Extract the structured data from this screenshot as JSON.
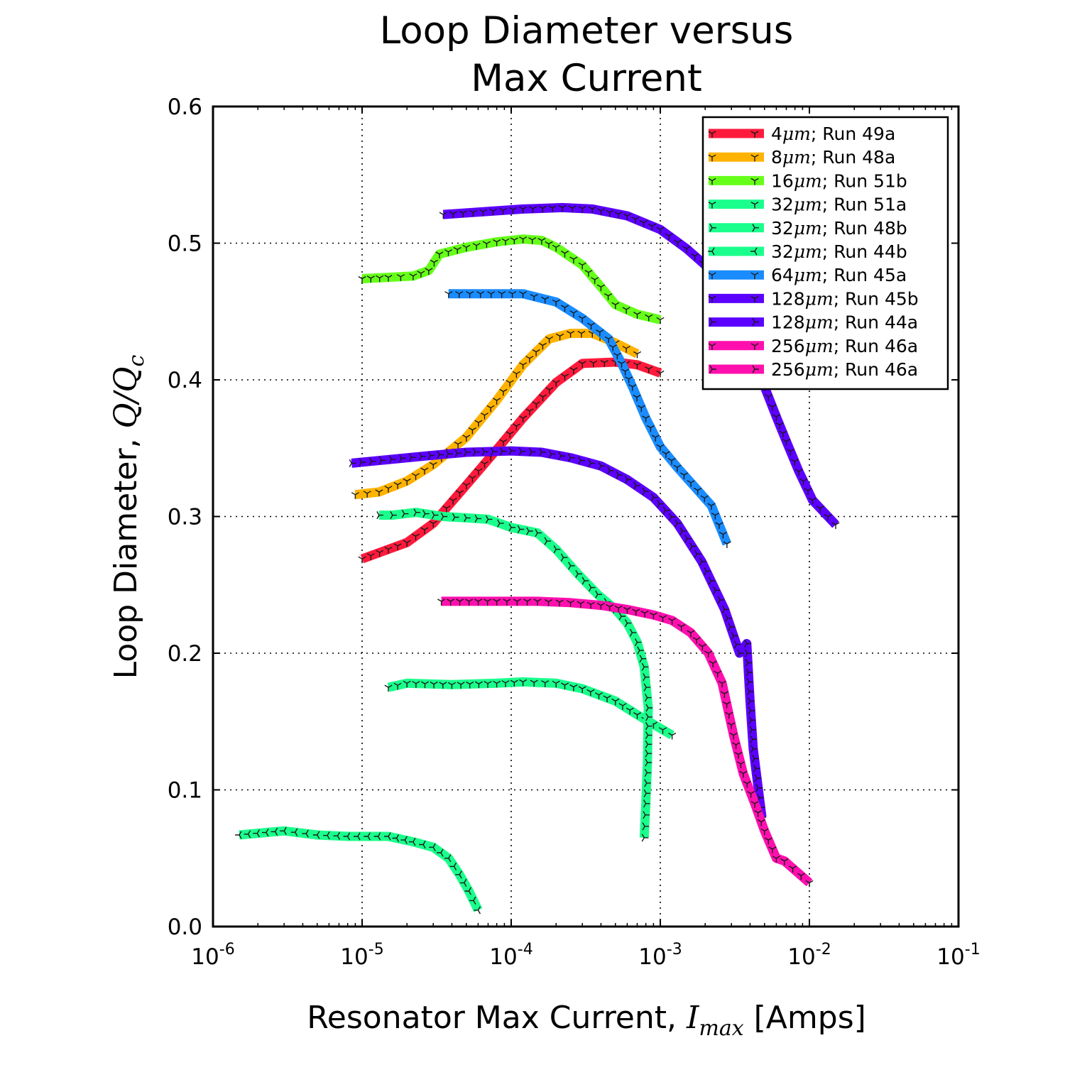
{
  "chart_data": {
    "type": "line",
    "title_lines": [
      "Loop Diameter versus",
      "Max Current"
    ],
    "xlabel": {
      "text": "Resonator Max Current, ",
      "math": "I",
      "sub": "max",
      "suffix": " [Amps]"
    },
    "ylabel": {
      "text": "Loop Diameter, ",
      "math": "Q/Q",
      "sub": "c"
    },
    "x_scale": "log",
    "xlim": [
      1e-06,
      0.1
    ],
    "ylim": [
      0.0,
      0.6
    ],
    "grid": true,
    "legend_position": "upper right",
    "x_ticks": [
      {
        "value": 1e-06,
        "base": "10",
        "exp": "-6"
      },
      {
        "value": 1e-05,
        "base": "10",
        "exp": "-5"
      },
      {
        "value": 0.0001,
        "base": "10",
        "exp": "-4"
      },
      {
        "value": 0.001,
        "base": "10",
        "exp": "-3"
      },
      {
        "value": 0.01,
        "base": "10",
        "exp": "-2"
      },
      {
        "value": 0.1,
        "base": "10",
        "exp": "-1"
      }
    ],
    "y_ticks": [
      {
        "value": 0.0,
        "label": "0.0"
      },
      {
        "value": 0.1,
        "label": "0.1"
      },
      {
        "value": 0.2,
        "label": "0.2"
      },
      {
        "value": 0.3,
        "label": "0.3"
      },
      {
        "value": 0.4,
        "label": "0.4"
      },
      {
        "value": 0.5,
        "label": "0.5"
      },
      {
        "value": 0.6,
        "label": "0.6"
      }
    ],
    "series": [
      {
        "name": "4μm; Run 49a",
        "label_size": "4",
        "label_unit": "μm",
        "label_run": "; Run 49a",
        "color": "#ff1a3c",
        "marker_dir": "down",
        "x": [
          1e-05,
          1.5e-05,
          2e-05,
          3e-05,
          5e-05,
          8e-05,
          0.00012,
          0.0002,
          0.0003,
          0.0005,
          0.0007,
          0.001
        ],
        "y": [
          0.269,
          0.276,
          0.281,
          0.295,
          0.323,
          0.349,
          0.372,
          0.398,
          0.412,
          0.413,
          0.411,
          0.405
        ]
      },
      {
        "name": "8μm; Run 48a",
        "label_size": "8",
        "label_unit": "μm",
        "label_run": "; Run 48a",
        "color": "#ffb300",
        "marker_dir": "down",
        "x": [
          9e-06,
          1.3e-05,
          2e-05,
          3e-05,
          5e-05,
          8e-05,
          0.00012,
          0.00018,
          0.00025,
          0.00035,
          0.0005,
          0.0007
        ],
        "y": [
          0.316,
          0.318,
          0.326,
          0.338,
          0.358,
          0.385,
          0.411,
          0.43,
          0.434,
          0.434,
          0.427,
          0.419
        ]
      },
      {
        "name": "16μm; Run 51b",
        "label_size": "16",
        "label_unit": "μm",
        "label_run": "; Run 51b",
        "color": "#66ff1a",
        "marker_dir": "down",
        "x": [
          1e-05,
          1.5e-05,
          2.2e-05,
          2.8e-05,
          3.3e-05,
          5e-05,
          8e-05,
          0.00012,
          0.00016,
          0.0002,
          0.0003,
          0.0004,
          0.0005,
          0.0007,
          0.001
        ],
        "y": [
          0.474,
          0.475,
          0.476,
          0.48,
          0.492,
          0.497,
          0.501,
          0.503,
          0.502,
          0.497,
          0.484,
          0.468,
          0.455,
          0.448,
          0.444
        ]
      },
      {
        "name": "32μm; Run 51a",
        "label_size": "32",
        "label_unit": "μm",
        "label_run": "; Run 51a",
        "color": "#1aff8c",
        "marker_dir": "down",
        "x": [
          1.5e-05,
          2e-05,
          4e-05,
          8e-05,
          0.00012,
          0.0002,
          0.0003,
          0.0005,
          0.0007,
          0.0009,
          0.0012
        ],
        "y": [
          0.175,
          0.178,
          0.177,
          0.178,
          0.179,
          0.178,
          0.174,
          0.165,
          0.155,
          0.148,
          0.14
        ]
      },
      {
        "name": "32μm; Run 48b",
        "label_size": "32",
        "label_unit": "μm",
        "label_run": "; Run 48b",
        "color": "#1aff8c",
        "marker_dir": "right",
        "x": [
          1.3e-05,
          1.6e-05,
          2.3e-05,
          3.5e-05,
          5e-05,
          7e-05,
          0.0001,
          0.00015,
          0.0002,
          0.00028,
          0.00038,
          0.0005,
          0.0006,
          0.0007,
          0.00078,
          0.00083,
          0.00082,
          0.0008,
          0.00078
        ],
        "y": [
          0.301,
          0.301,
          0.303,
          0.3,
          0.299,
          0.298,
          0.292,
          0.288,
          0.276,
          0.258,
          0.243,
          0.232,
          0.222,
          0.208,
          0.19,
          0.16,
          0.12,
          0.09,
          0.065
        ]
      },
      {
        "name": "32μm; Run 44b",
        "label_size": "32",
        "label_unit": "μm",
        "label_run": "; Run 44b",
        "color": "#1aff8c",
        "marker_dir": "left",
        "x": [
          1.5e-06,
          3e-06,
          5e-06,
          8e-06,
          1.5e-05,
          2.2e-05,
          3e-05,
          3.8e-05,
          4.5e-05,
          5.2e-05,
          6e-05
        ],
        "y": [
          0.067,
          0.07,
          0.067,
          0.066,
          0.066,
          0.062,
          0.058,
          0.05,
          0.038,
          0.026,
          0.012
        ]
      },
      {
        "name": "64μm; Run 45a",
        "label_size": "64",
        "label_unit": "μm",
        "label_run": "; Run 45a",
        "color": "#1a8cff",
        "marker_dir": "down",
        "x": [
          3.8e-05,
          0.00012,
          0.0002,
          0.0003,
          0.00045,
          0.00055,
          0.00065,
          0.0008,
          0.001,
          0.0013,
          0.0022,
          0.0028
        ],
        "y": [
          0.463,
          0.463,
          0.457,
          0.445,
          0.43,
          0.412,
          0.395,
          0.372,
          0.351,
          0.336,
          0.308,
          0.28
        ]
      },
      {
        "name": "128μm; Run 45b",
        "label_size": "128",
        "label_unit": "μm",
        "label_run": "; Run 45b",
        "color": "#5c00ff",
        "marker_dir": "down",
        "x": [
          3.5e-05,
          0.00012,
          0.00022,
          0.00035,
          0.0006,
          0.001,
          0.0015,
          0.0022,
          0.003,
          0.004,
          0.005,
          0.006,
          0.007,
          0.0085,
          0.0105,
          0.015
        ],
        "y": [
          0.521,
          0.525,
          0.526,
          0.525,
          0.52,
          0.51,
          0.496,
          0.48,
          0.462,
          0.43,
          0.395,
          0.373,
          0.355,
          0.333,
          0.312,
          0.294
        ]
      },
      {
        "name": "128μm; Run 44a",
        "label_size": "128",
        "label_unit": "μm",
        "label_run": "; Run 44a",
        "color": "#5c00ff",
        "marker_dir": "right",
        "x": [
          8.5e-06,
          2.5e-05,
          5e-05,
          0.0001,
          0.00016,
          0.00025,
          0.0004,
          0.0006,
          0.0009,
          0.0013,
          0.0019,
          0.0027,
          0.0034,
          0.0038,
          0.004,
          0.0042,
          0.0048
        ],
        "y": [
          0.339,
          0.344,
          0.347,
          0.348,
          0.347,
          0.343,
          0.337,
          0.327,
          0.314,
          0.295,
          0.267,
          0.232,
          0.2,
          0.207,
          0.165,
          0.13,
          0.08
        ]
      },
      {
        "name": "256μm; Run 46a",
        "label_size": "256",
        "label_unit": "μm",
        "label_run": "; Run 46a",
        "color": "#ff0fae",
        "marker_dir": "down",
        "x": [
          3.4e-05,
          8e-05,
          0.00015,
          0.00025,
          0.0004,
          0.0006,
          0.0009,
          0.0012,
          0.0016,
          0.0021,
          0.0026,
          0.0031,
          0.0036,
          0.0043,
          0.005,
          0.006,
          0.0068,
          0.01
        ],
        "y": [
          0.238,
          0.238,
          0.238,
          0.237,
          0.235,
          0.232,
          0.228,
          0.224,
          0.215,
          0.2,
          0.178,
          0.14,
          0.112,
          0.09,
          0.07,
          0.05,
          0.048,
          0.032
        ]
      },
      {
        "name": "256μm; Run 46a",
        "label_size": "256",
        "label_unit": "μm",
        "label_run": "; Run 46a",
        "color": "#ff0fae",
        "marker_dir": "right",
        "x": [],
        "y": []
      }
    ]
  }
}
